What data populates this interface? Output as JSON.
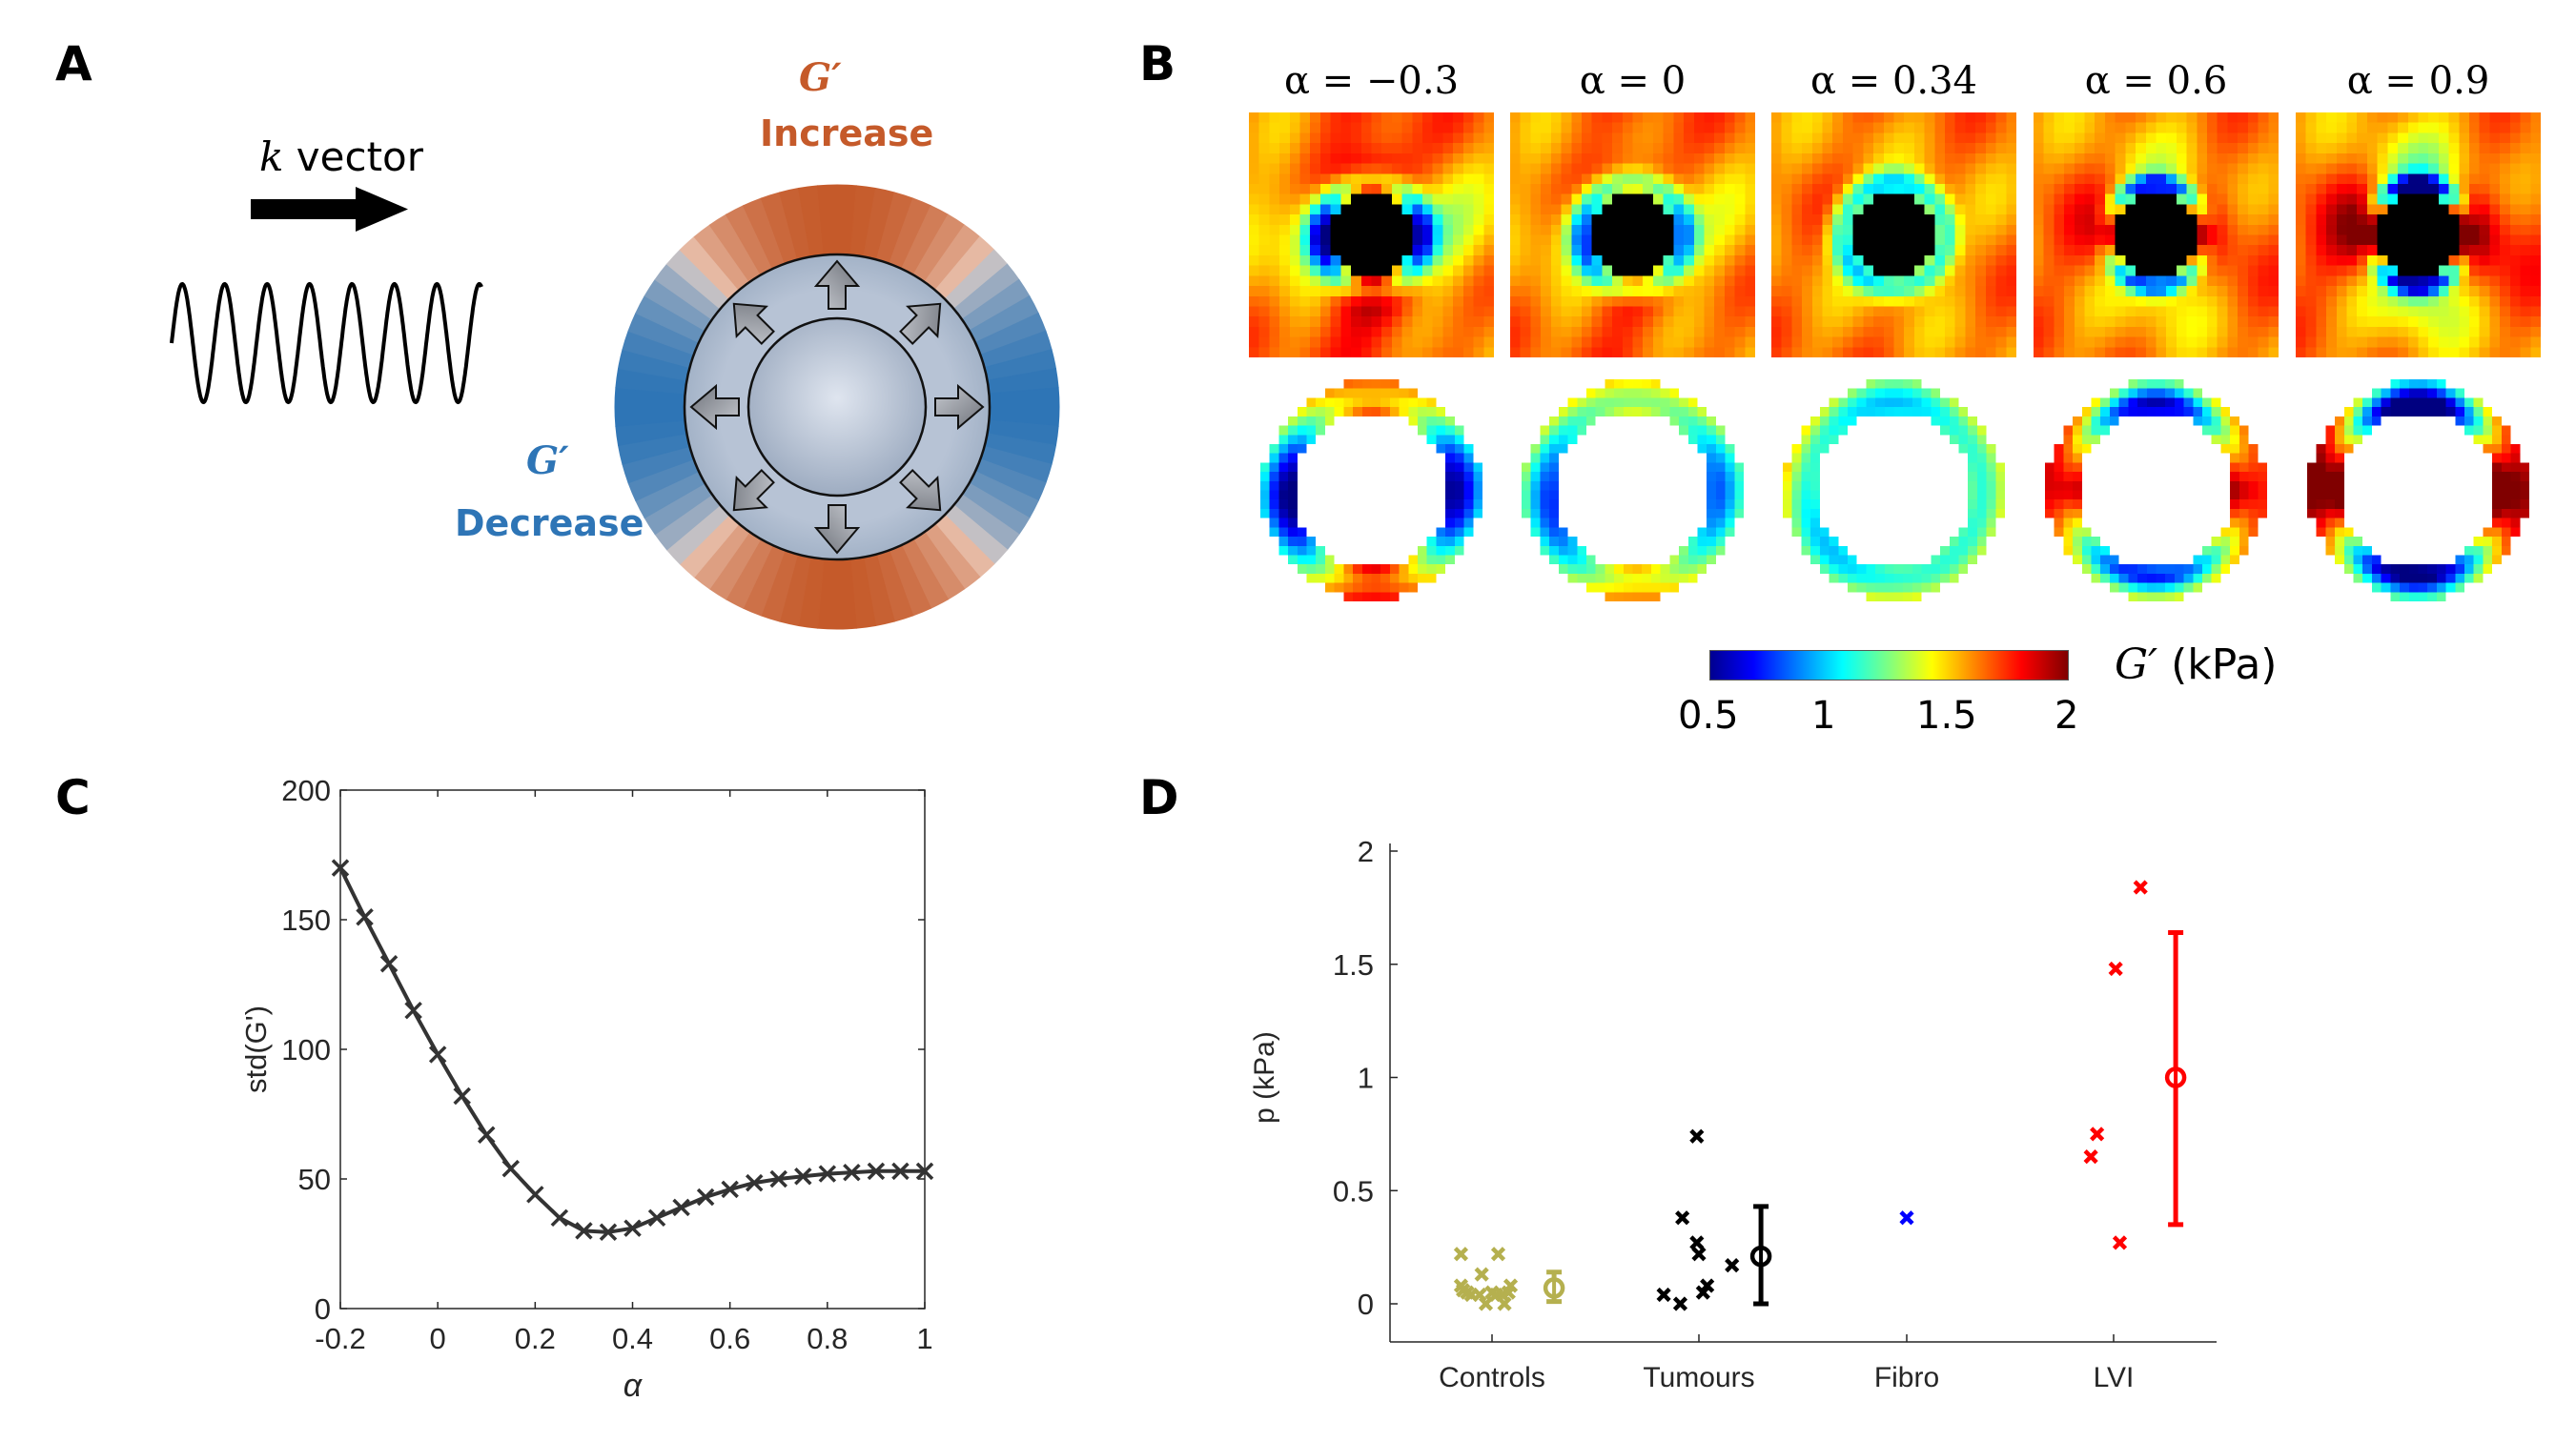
{
  "panels": {
    "a": {
      "letter": "A",
      "k_label_italic": "k",
      "k_label_rest": " vector",
      "increase_symbol": "G′",
      "increase_label": "Increase",
      "decrease_symbol": "G′",
      "decrease_label": "Decrease",
      "colors": {
        "increase": "#c55a2a",
        "decrease": "#2e75b6",
        "inclusion": "#aab8cc",
        "arrow": "#8a8e96"
      }
    },
    "b": {
      "letter": "B",
      "maps": [
        {
          "title": "α = −0.3",
          "alpha": -0.3
        },
        {
          "title": "α = 0",
          "alpha": 0
        },
        {
          "title": "α = 0.34",
          "alpha": 0.34
        },
        {
          "title": "α = 0.6",
          "alpha": 0.6
        },
        {
          "title": "α = 0.9",
          "alpha": 0.9
        }
      ],
      "colorbar": {
        "label_symbol": "G′",
        "label_unit": " (kPa)",
        "ticks": [
          "0.5",
          "1",
          "1.5",
          "2"
        ],
        "range": [
          0.5,
          2
        ],
        "colormap": "jet"
      }
    },
    "c": {
      "letter": "C"
    },
    "d": {
      "letter": "D"
    }
  },
  "chart_data": [
    {
      "id": "panel-c",
      "type": "line",
      "title": "",
      "xlabel": "α",
      "ylabel": "std(G')",
      "xlim": [
        -0.2,
        1
      ],
      "ylim": [
        0,
        200
      ],
      "xticks": [
        "-0.2",
        "0",
        "0.2",
        "0.4",
        "0.6",
        "0.8",
        "1"
      ],
      "yticks": [
        "0",
        "50",
        "100",
        "150",
        "200"
      ],
      "grid": false,
      "marker": "x",
      "color": "#333333",
      "x": [
        -0.2,
        -0.15,
        -0.1,
        -0.05,
        0,
        0.05,
        0.1,
        0.15,
        0.2,
        0.25,
        0.3,
        0.35,
        0.4,
        0.45,
        0.5,
        0.55,
        0.6,
        0.65,
        0.7,
        0.75,
        0.8,
        0.85,
        0.9,
        0.95,
        1.0
      ],
      "y": [
        170,
        151,
        133,
        115,
        98,
        82,
        67,
        54,
        44,
        35,
        30,
        29.5,
        31,
        35,
        39,
        43,
        46,
        48.5,
        50,
        51,
        52,
        52.5,
        53,
        53,
        53
      ]
    },
    {
      "id": "panel-d",
      "type": "scatter",
      "title": "",
      "xlabel": "",
      "ylabel": "p (kPa)",
      "ylim": [
        -0.17,
        2
      ],
      "yticks": [
        "0",
        "0.5",
        "1",
        "1.5",
        "2"
      ],
      "categories": [
        "Controls",
        "Tumours",
        "Fibro",
        "LVI"
      ],
      "grid": false,
      "series": [
        {
          "name": "Controls",
          "color": "#b5b04f",
          "points": [
            {
              "dx": -0.15,
              "y": 0.22
            },
            {
              "dx": -0.15,
              "y": 0.08
            },
            {
              "dx": -0.14,
              "y": 0.06
            },
            {
              "dx": -0.12,
              "y": 0.05
            },
            {
              "dx": -0.1,
              "y": 0.04
            },
            {
              "dx": -0.05,
              "y": 0.13
            },
            {
              "dx": -0.06,
              "y": 0.04
            },
            {
              "dx": -0.03,
              "y": 0.0
            },
            {
              "dx": 0.0,
              "y": 0.05
            },
            {
              "dx": 0.03,
              "y": 0.22
            },
            {
              "dx": 0.02,
              "y": 0.04
            },
            {
              "dx": 0.06,
              "y": 0.0
            },
            {
              "dx": 0.05,
              "y": 0.04
            },
            {
              "dx": 0.09,
              "y": 0.08
            },
            {
              "dx": 0.08,
              "y": 0.05
            }
          ],
          "mean": 0.07,
          "err_low": 0.01,
          "err_high": 0.14
        },
        {
          "name": "Tumours",
          "color": "#000000",
          "points": [
            {
              "dx": -0.17,
              "y": 0.04
            },
            {
              "dx": -0.09,
              "y": 0.0
            },
            {
              "dx": -0.08,
              "y": 0.38
            },
            {
              "dx": -0.01,
              "y": 0.27
            },
            {
              "dx": 0.0,
              "y": 0.22
            },
            {
              "dx": -0.01,
              "y": 0.74
            },
            {
              "dx": 0.02,
              "y": 0.05
            },
            {
              "dx": 0.04,
              "y": 0.08
            },
            {
              "dx": 0.16,
              "y": 0.17
            }
          ],
          "mean": 0.21,
          "err_low": 0.0,
          "err_high": 0.43
        },
        {
          "name": "Fibro",
          "color": "#0000ff",
          "points": [
            {
              "dx": 0.0,
              "y": 0.38
            }
          ],
          "mean": null,
          "err_low": null,
          "err_high": null
        },
        {
          "name": "LVI",
          "color": "#ff0000",
          "points": [
            {
              "dx": 0.13,
              "y": 1.84
            },
            {
              "dx": 0.01,
              "y": 1.48
            },
            {
              "dx": -0.08,
              "y": 0.75
            },
            {
              "dx": -0.11,
              "y": 0.65
            },
            {
              "dx": 0.03,
              "y": 0.27
            }
          ],
          "mean": 1.0,
          "err_low": 0.35,
          "err_high": 1.64
        }
      ]
    }
  ]
}
